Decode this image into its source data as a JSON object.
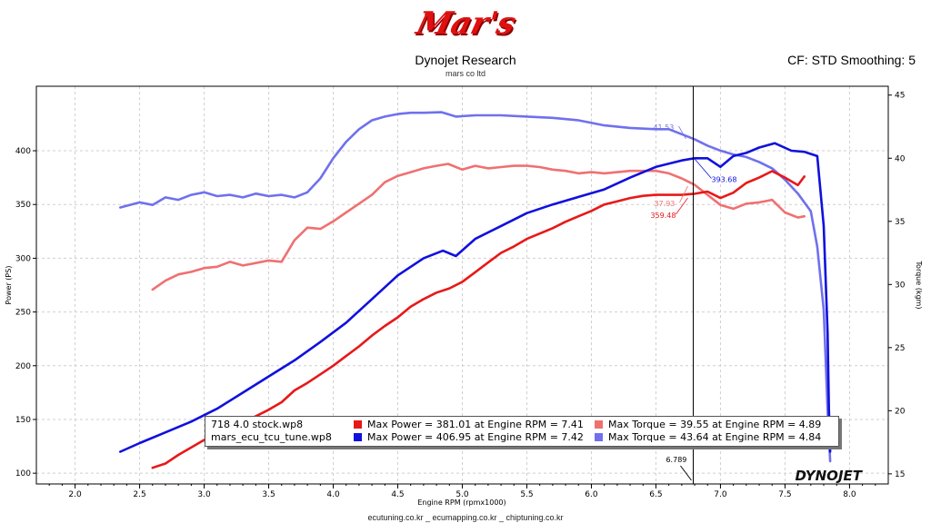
{
  "header": {
    "logo_text": "Mar's",
    "title": "Dynojet Research",
    "subtitle": "mars co ltd",
    "cf_smoothing": "CF: STD Smoothing: 5"
  },
  "footer": "ecutuning.co.kr _ ecumapping.co.kr _ chiptuning.co.kr",
  "brand_logo": "DYNOJET",
  "colors": {
    "stock_power": "#e81818",
    "tune_power": "#1010dd",
    "stock_torque": "#f07070",
    "tune_torque": "#7070ee"
  },
  "chart_data": {
    "type": "line",
    "title": "Dynojet Research",
    "xlabel": "Engine RPM (rpmx1000)",
    "ylabel_left": "Power (PS)",
    "ylabel_right": "Torque (kgm)",
    "xlim": [
      1.7,
      8.3
    ],
    "ylim_left": [
      90,
      460
    ],
    "ylim_right": [
      14.2,
      45.7
    ],
    "x_ticks": [
      "2.0",
      "2.5",
      "3.0",
      "3.5",
      "4.0",
      "4.5",
      "5.0",
      "5.5",
      "6.0",
      "6.5",
      "7.0",
      "7.5",
      "8.0"
    ],
    "y_left_ticks": [
      "100",
      "150",
      "200",
      "250",
      "300",
      "350",
      "400"
    ],
    "y_right_ticks": [
      "15",
      "20",
      "25",
      "30",
      "35",
      "40",
      "45"
    ],
    "grid": true,
    "cursor_rpm": "6.789",
    "cursor_labels": {
      "tune_torque": "41.53",
      "tune_power": "393.68",
      "stock_power": "359.48",
      "stock_torque": "37.93"
    },
    "series": [
      {
        "name": "718 4.0 stock.wp8 Power",
        "axis": "left",
        "x": [
          2.6,
          2.7,
          2.8,
          2.9,
          3.0,
          3.1,
          3.2,
          3.3,
          3.4,
          3.5,
          3.6,
          3.7,
          3.8,
          3.9,
          4.0,
          4.1,
          4.2,
          4.3,
          4.4,
          4.5,
          4.6,
          4.7,
          4.8,
          4.9,
          5.0,
          5.1,
          5.2,
          5.3,
          5.4,
          5.5,
          5.6,
          5.7,
          5.8,
          5.9,
          6.0,
          6.1,
          6.2,
          6.3,
          6.4,
          6.5,
          6.6,
          6.7,
          6.8,
          6.9,
          7.0,
          7.1,
          7.2,
          7.3,
          7.4,
          7.5,
          7.6,
          7.65
        ],
        "y": [
          105,
          109,
          117,
          124,
          131,
          138,
          143,
          148,
          153,
          159,
          166,
          177,
          184,
          192,
          200,
          209,
          218,
          228,
          237,
          245,
          255,
          262,
          268,
          272,
          278,
          287,
          296,
          305,
          311,
          318,
          323,
          328,
          334,
          339,
          344,
          350,
          353,
          356,
          358,
          359,
          359,
          359,
          360,
          362,
          356,
          361,
          370,
          375,
          381,
          375,
          368,
          376
        ]
      },
      {
        "name": "mars_ecu_tcu_tune.wp8 Power",
        "axis": "left",
        "x": [
          2.35,
          2.5,
          2.7,
          2.9,
          3.1,
          3.3,
          3.5,
          3.7,
          3.9,
          4.1,
          4.3,
          4.5,
          4.7,
          4.85,
          4.95,
          5.1,
          5.3,
          5.5,
          5.7,
          5.9,
          6.1,
          6.3,
          6.5,
          6.7,
          6.8,
          6.9,
          7.0,
          7.1,
          7.2,
          7.3,
          7.42,
          7.55,
          7.65,
          7.75,
          7.8,
          7.83,
          7.84,
          7.85
        ],
        "y": [
          120,
          128,
          138,
          148,
          160,
          175,
          190,
          205,
          222,
          240,
          262,
          284,
          300,
          307,
          302,
          318,
          330,
          342,
          350,
          357,
          364,
          375,
          385,
          391,
          393,
          393,
          385,
          395,
          398,
          403,
          407,
          400,
          399,
          395,
          330,
          230,
          160,
          120
        ]
      },
      {
        "name": "718 4.0 stock.wp8 Torque",
        "axis": "right",
        "x": [
          2.6,
          2.7,
          2.8,
          2.9,
          3.0,
          3.1,
          3.2,
          3.3,
          3.4,
          3.5,
          3.6,
          3.7,
          3.8,
          3.9,
          4.0,
          4.1,
          4.2,
          4.3,
          4.4,
          4.5,
          4.6,
          4.7,
          4.8,
          4.89,
          5.0,
          5.1,
          5.2,
          5.3,
          5.4,
          5.5,
          5.6,
          5.7,
          5.8,
          5.9,
          6.0,
          6.1,
          6.2,
          6.3,
          6.4,
          6.5,
          6.6,
          6.7,
          6.8,
          6.9,
          7.0,
          7.1,
          7.2,
          7.3,
          7.4,
          7.5,
          7.6,
          7.65
        ],
        "y": [
          29.6,
          30.3,
          30.8,
          31.0,
          31.3,
          31.4,
          31.8,
          31.5,
          31.7,
          31.9,
          31.8,
          33.5,
          34.5,
          34.4,
          35.0,
          35.7,
          36.4,
          37.1,
          38.1,
          38.6,
          38.9,
          39.2,
          39.4,
          39.55,
          39.1,
          39.4,
          39.2,
          39.3,
          39.4,
          39.4,
          39.3,
          39.1,
          39.0,
          38.8,
          38.9,
          38.8,
          38.9,
          39.0,
          39.0,
          39.0,
          38.8,
          38.4,
          37.9,
          37.1,
          36.3,
          36.0,
          36.4,
          36.5,
          36.7,
          35.7,
          35.3,
          35.4
        ]
      },
      {
        "name": "mars_ecu_tcu_tune.wp8 Torque",
        "axis": "right",
        "x": [
          2.35,
          2.5,
          2.6,
          2.7,
          2.8,
          2.9,
          3.0,
          3.1,
          3.2,
          3.3,
          3.4,
          3.5,
          3.6,
          3.7,
          3.8,
          3.9,
          4.0,
          4.1,
          4.2,
          4.3,
          4.4,
          4.5,
          4.6,
          4.7,
          4.84,
          4.95,
          5.1,
          5.3,
          5.5,
          5.7,
          5.9,
          6.1,
          6.3,
          6.5,
          6.6,
          6.7,
          6.8,
          6.9,
          7.0,
          7.1,
          7.2,
          7.3,
          7.4,
          7.5,
          7.6,
          7.7,
          7.75,
          7.8,
          7.83,
          7.85
        ],
        "y": [
          36.1,
          36.5,
          36.3,
          36.9,
          36.7,
          37.1,
          37.3,
          37.0,
          37.1,
          36.9,
          37.2,
          37.0,
          37.1,
          36.9,
          37.3,
          38.4,
          40.0,
          41.3,
          42.3,
          43.0,
          43.3,
          43.5,
          43.6,
          43.6,
          43.64,
          43.3,
          43.4,
          43.4,
          43.3,
          43.2,
          43.0,
          42.6,
          42.4,
          42.3,
          42.3,
          41.9,
          41.5,
          41.0,
          40.6,
          40.3,
          40.1,
          39.7,
          39.2,
          38.3,
          37.2,
          35.8,
          33.0,
          28.0,
          20.0,
          16.0
        ]
      }
    ],
    "legend": {
      "placement": "bottom",
      "files": [
        "718 4.0 stock.wp8",
        "mars_ecu_tcu_tune.wp8"
      ],
      "rows": [
        {
          "power": "Max Power = 381.01 at Engine RPM = 7.41",
          "torque": "Max Torque = 39.55 at Engine RPM = 4.89"
        },
        {
          "power": "Max Power = 406.95 at Engine RPM = 7.42",
          "torque": "Max Torque = 43.64 at Engine RPM = 4.84"
        }
      ]
    }
  }
}
